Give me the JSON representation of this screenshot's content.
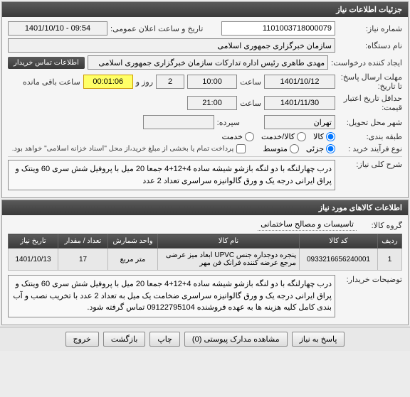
{
  "header": {
    "title": "جزئیات اطلاعات نیاز"
  },
  "fields": {
    "need_number_label": "شماره نیاز:",
    "need_number": "1101003718000079",
    "announce_datetime_label": "تاریخ و ساعت اعلان عمومی:",
    "announce_datetime": "1401/10/10 - 09:54",
    "org_name_label": "نام دستگاه:",
    "org_name": "سازمان خبرگزاری جمهوری اسلامی",
    "requester_label": "ایجاد کننده درخواست:",
    "requester": "مهدی طاهری رئیس اداره تدارکات سازمان خبرگزاری جمهوری اسلامی",
    "buyer_contact_tab": "اطلاعات تماس خریدار",
    "response_deadline_label": "مهلت ارسال پاسخ:",
    "response_deadline_to_label": "تا تاریخ:",
    "response_date": "1401/10/12",
    "time_label": "ساعت",
    "response_time": "10:00",
    "days_remaining": "2",
    "days_and_label": "روز و",
    "remaining_time": "00:01:06",
    "remaining_suffix": "ساعت باقی مانده",
    "validity_label": "حداقل تاریخ اعتبار",
    "validity_label2": "قیمت:",
    "validity_date": "1401/11/30",
    "validity_time": "21:00",
    "delivery_city_label": "شهر محل تحویل:",
    "delivery_city": "تهران",
    "deposit_label": "سپرده:",
    "category_label": "طبقه بندی:",
    "cat_goods": "کالا",
    "cat_service": "کالا/خدمت",
    "cat_service_only": "خدمت",
    "purchase_type_label": "نوع فرآیند خرید :",
    "pt_small": "جزئی",
    "pt_medium": "متوسط",
    "partial_payment_label": "پرداخت تمام یا بخشی از مبلغ خرید،از محل \"اسناد خزانه اسلامی\" خواهد بود.",
    "general_desc_label": "شرح کلی نیاز:",
    "general_desc": "درب چهارلنگه با دو لنگه بازشو شیشه ساده 4+12+4 جمعا 20 میل با پروفیل شش سری 60 وینتک و پراق ایرانی درجه یک و ورق گالوانیزه سراسری تعداد 2 عدد"
  },
  "items_section": {
    "title": "اطلاعات کالاهای مورد نیاز",
    "group_label": "گروه کالا:",
    "group_value": "تاسیسات و مصالح ساختمانی",
    "columns": {
      "row": "ردیف",
      "code": "کد کالا",
      "name": "نام کالا",
      "unit": "واحد شمارش",
      "qty": "تعداد / مقدار",
      "date": "تاریخ نیاز"
    },
    "rows": [
      {
        "row": "1",
        "code": "0933216656240001",
        "name": "پنجره دوجداره جنس UPVC ابعاد میز عرضی مرجع عرضه کننده فرانک فن مهر",
        "unit": "متر مربع",
        "qty": "17",
        "date": "1401/10/13"
      }
    ],
    "buyer_notes_label": "توضیحات خریدار:",
    "buyer_notes": "درب چهارلنگه با دو لنگه بازشو شیشه ساده 4+12+4 جمعا 20 میل با پروفیل شش سری 60 وینتک و پراق ایرانی درجه یک و ورق گالوانیزه سراسری ضخامت یک میل به تعداد 2 عدد با تخریب نصب و آب بندی کامل کلیه هزینه ها به عهده فروشنده 09122795104 تماس گرفته شود."
  },
  "footer": {
    "respond": "پاسخ به نیاز",
    "attachments": "مشاهده مدارک پیوستی",
    "attachments_count": "(0)",
    "print": "چاپ",
    "back": "بازگشت",
    "exit": "خروج"
  }
}
